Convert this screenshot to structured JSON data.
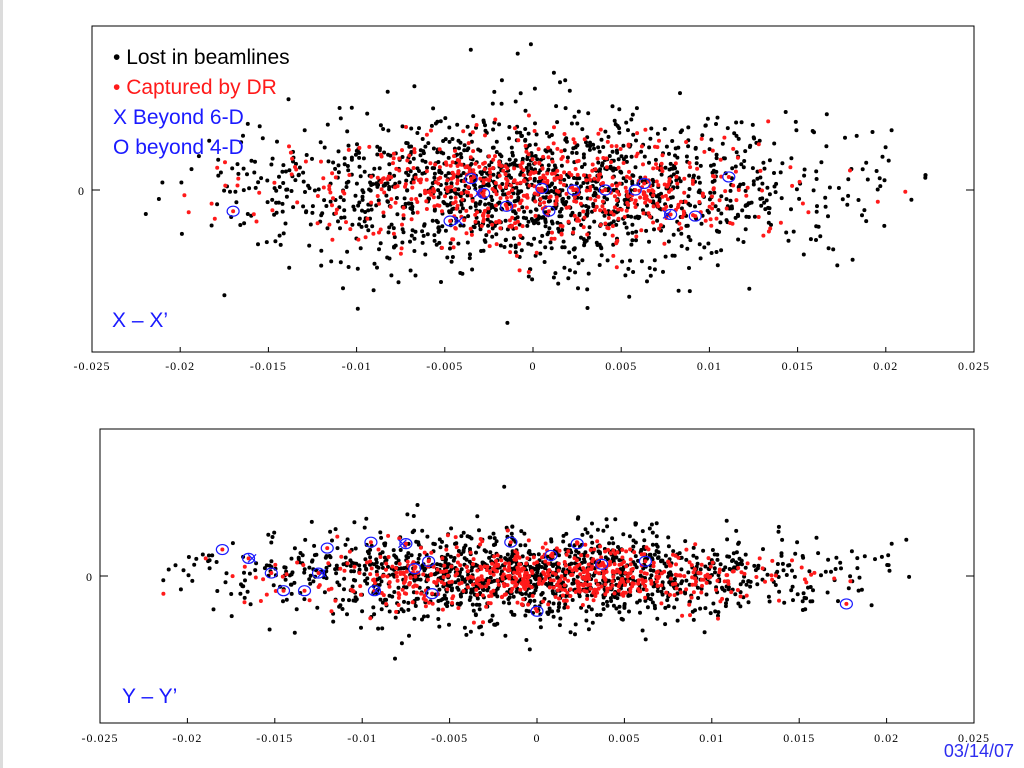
{
  "colors": {
    "lost": "#000000",
    "captured": "#ff1a1a",
    "beyond": "#1a1aff",
    "axis": "#000000"
  },
  "footer": {
    "date": "03/14/07"
  },
  "chart_data": [
    {
      "type": "scatter",
      "panel_label": "X – X’",
      "legend": [
        {
          "marker": "•",
          "text": "Lost in beamlines",
          "color": "#000000"
        },
        {
          "marker": "•",
          "text": "Captured by DR",
          "color": "#ff1a1a"
        },
        {
          "marker": "X",
          "text": "Beyond 6-D",
          "color": "#1a1aff"
        },
        {
          "marker": "O",
          "text": "beyond 4-D",
          "color": "#1a1aff"
        }
      ],
      "legend_position": "top-left",
      "xlim": [
        -0.025,
        0.025
      ],
      "x_ticks": [
        "-0.025",
        "-0.02",
        "-0.015",
        "-0.01",
        "-0.005",
        "0",
        "0.005",
        "0.01",
        "0.015",
        "0.02",
        "0.025"
      ],
      "y_tick_labels": [
        "0"
      ],
      "grid": false,
      "n_lost": 1500,
      "n_captured": 650,
      "x_extent": [
        -0.0235,
        0.0235
      ],
      "lost_spread_y": 0.25,
      "captured_spread_y": 0.16,
      "beyond_circles": [
        [
          -0.017,
          -0.13
        ],
        [
          -0.0047,
          -0.19
        ],
        [
          -0.0028,
          -0.02
        ],
        [
          0.0005,
          0.01
        ],
        [
          -0.0015,
          -0.1
        ],
        [
          0.0023,
          0.0
        ],
        [
          0.0041,
          0.0
        ],
        [
          0.0058,
          0.0
        ],
        [
          0.0063,
          0.04
        ],
        [
          0.0078,
          -0.15
        ],
        [
          0.0092,
          -0.16
        ],
        [
          0.0111,
          0.08
        ],
        [
          -0.0035,
          0.07
        ],
        [
          0.0009,
          -0.13
        ]
      ],
      "beyond_x": [
        [
          -0.0042,
          -0.19
        ],
        [
          0.0076,
          -0.15
        ],
        [
          -0.0031,
          -0.02
        ]
      ]
    },
    {
      "type": "scatter",
      "panel_label": "Y – Y’",
      "xlim": [
        -0.025,
        0.025
      ],
      "x_ticks": [
        "-0.025",
        "-0.02",
        "-0.015",
        "-0.01",
        "-0.005",
        "0",
        "0.005",
        "0.01",
        "0.015",
        "0.02",
        "0.025"
      ],
      "y_tick_labels": [
        "0"
      ],
      "grid": false,
      "n_lost": 1400,
      "n_captured": 650,
      "x_extent": [
        -0.0228,
        0.0228
      ],
      "lost_spread_y": 0.16,
      "captured_spread_y": 0.1,
      "beyond_circles": [
        [
          -0.018,
          0.18
        ],
        [
          -0.0165,
          0.12
        ],
        [
          -0.0152,
          0.02
        ],
        [
          -0.0145,
          -0.1
        ],
        [
          -0.0133,
          -0.1
        ],
        [
          -0.0125,
          0.02
        ],
        [
          -0.012,
          0.19
        ],
        [
          -0.0095,
          0.23
        ],
        [
          -0.0093,
          -0.1
        ],
        [
          -0.0075,
          0.22
        ],
        [
          -0.007,
          0.05
        ],
        [
          -0.0062,
          0.1
        ],
        [
          -0.006,
          -0.12
        ],
        [
          -0.0015,
          0.23
        ],
        [
          0.0,
          -0.24
        ],
        [
          0.0008,
          0.14
        ],
        [
          0.0023,
          0.22
        ],
        [
          0.0037,
          0.08
        ],
        [
          0.0062,
          0.1
        ],
        [
          0.0177,
          -0.19
        ]
      ],
      "beyond_x": [
        [
          -0.0163,
          0.12
        ],
        [
          -0.0123,
          0.02
        ],
        [
          -0.0092,
          -0.1
        ],
        [
          -0.0077,
          0.22
        ]
      ]
    }
  ]
}
